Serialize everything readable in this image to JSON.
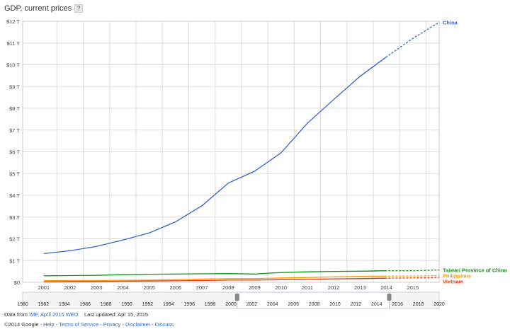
{
  "title": "GDP, current prices",
  "help_label": "?",
  "footer": {
    "data_from_prefix": "Data from",
    "source_link": "IMF, April 2015 WEO",
    "last_updated": "Last updated: Apr 15, 2015",
    "copyright": "©2014 Google",
    "links": [
      "Help",
      "Terms of Service",
      "Privacy",
      "Disclaimer",
      "Discuss"
    ]
  },
  "chart_data": {
    "type": "line",
    "ylim": [
      0,
      12
    ],
    "yticks": [
      "$0",
      "$1 T",
      "$2 T",
      "$3 T",
      "$4 T",
      "$5 T",
      "$6 T",
      "$7 T",
      "$8 T",
      "$9 T",
      "$10 T",
      "$11 T",
      "$12 T"
    ],
    "x": [
      2001,
      2002,
      2003,
      2004,
      2005,
      2006,
      2007,
      2008,
      2009,
      2010,
      2011,
      2012,
      2013,
      2014,
      2015,
      2016
    ],
    "xlim": [
      2000.2,
      2016.0
    ],
    "xticks": [
      "2001",
      "2002",
      "2003",
      "2004",
      "2005",
      "2006",
      "2007",
      "2008",
      "2009",
      "2010",
      "2011",
      "2012",
      "2013",
      "2014",
      "2015"
    ],
    "projection_start": 2013.5,
    "grid": true,
    "legend": "right",
    "series": [
      {
        "name": "China",
        "color": "#3366cc",
        "values": [
          1.32,
          1.45,
          1.65,
          1.94,
          2.27,
          2.78,
          3.52,
          4.56,
          5.11,
          5.95,
          7.31,
          8.4,
          9.47,
          10.36,
          11.21,
          11.95
        ]
      },
      {
        "name": "Taiwan Province of China",
        "color": "#109618",
        "values": [
          0.3,
          0.31,
          0.32,
          0.35,
          0.37,
          0.38,
          0.39,
          0.4,
          0.38,
          0.45,
          0.48,
          0.5,
          0.51,
          0.53,
          0.53,
          0.57
        ]
      },
      {
        "name": "Philippines",
        "color": "#ff9900",
        "values": [
          0.08,
          0.08,
          0.08,
          0.09,
          0.1,
          0.12,
          0.15,
          0.17,
          0.17,
          0.2,
          0.22,
          0.25,
          0.27,
          0.28,
          0.29,
          0.31
        ]
      },
      {
        "name": "Vietnam",
        "color": "#dc3912",
        "values": [
          0.03,
          0.04,
          0.04,
          0.05,
          0.06,
          0.07,
          0.08,
          0.1,
          0.1,
          0.12,
          0.13,
          0.16,
          0.17,
          0.19,
          0.2,
          0.22
        ]
      }
    ],
    "timeline": {
      "labels": [
        "1980",
        "1982",
        "1984",
        "1986",
        "1988",
        "1990",
        "1992",
        "1994",
        "1996",
        "1998",
        "2000",
        "2002",
        "2004",
        "2006",
        "2008",
        "2010",
        "2012",
        "2014",
        "2016",
        "2018",
        "2020"
      ],
      "range_start": 2000.6,
      "range_end": 2015.2
    }
  }
}
